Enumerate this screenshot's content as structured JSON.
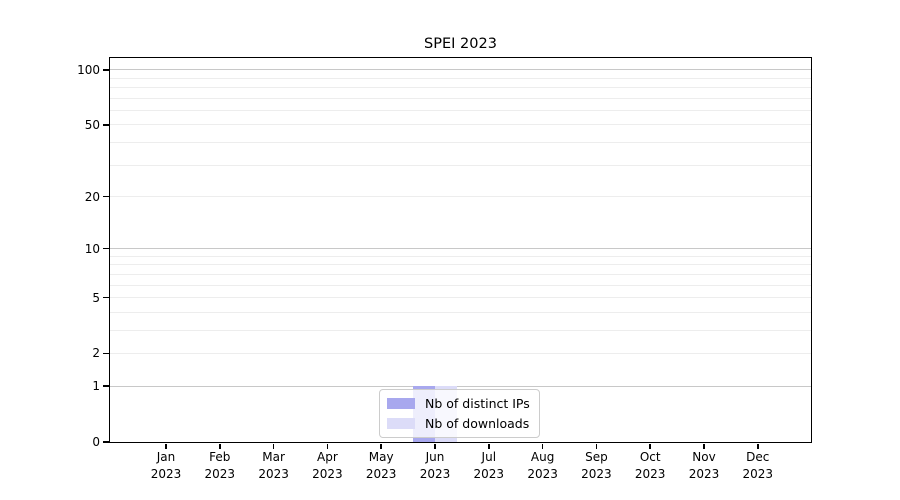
{
  "chart_data": {
    "type": "bar",
    "title": "SPEI 2023",
    "categories": [
      "Jan 2023",
      "Feb 2023",
      "Mar 2023",
      "Apr 2023",
      "May 2023",
      "Jun 2023",
      "Jul 2023",
      "Aug 2023",
      "Sep 2023",
      "Oct 2023",
      "Nov 2023",
      "Dec 2023"
    ],
    "series": [
      {
        "name": "Nb of distinct IPs",
        "color": "#a8a8ee",
        "values": [
          0,
          0,
          0,
          0,
          0,
          1,
          0,
          0,
          0,
          0,
          0,
          0
        ]
      },
      {
        "name": "Nb of downloads",
        "color": "#dcdcf8",
        "values": [
          0,
          0,
          0,
          0,
          0,
          1,
          0,
          0,
          0,
          0,
          0,
          0
        ]
      }
    ],
    "xlabel": "",
    "ylabel": "",
    "y_scale": "log1p",
    "ylim": [
      0,
      116
    ],
    "y_tick_labels": [
      0,
      1,
      2,
      5,
      10,
      20,
      50,
      100
    ],
    "grid_major": [
      1,
      10,
      100
    ],
    "grid_minor": [
      2,
      3,
      4,
      5,
      6,
      7,
      8,
      9,
      20,
      30,
      40,
      50,
      60,
      70,
      80,
      90
    ],
    "grid": true,
    "legend_position": "lower center"
  },
  "colors": {
    "grid_major": "#c8c8c8",
    "grid_minor": "#ededed",
    "spine": "#000000",
    "legend_border": "#cccccc",
    "background": "#ffffff"
  }
}
